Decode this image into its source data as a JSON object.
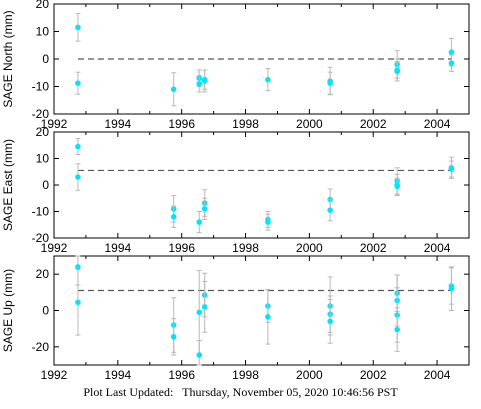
{
  "chart_data": [
    {
      "type": "scatter",
      "ylabel": "SAGE North (mm)",
      "ylim": [
        -20,
        20
      ],
      "yticks": [
        -20,
        -10,
        0,
        10,
        20
      ],
      "xlim": [
        1992,
        2005
      ],
      "xticks": [
        1992,
        1994,
        1996,
        1998,
        2000,
        2002,
        2004
      ],
      "reference_line": 0,
      "points": [
        {
          "x": 1992.75,
          "y": 11.5,
          "err": 5.0
        },
        {
          "x": 1992.75,
          "y": -8.8,
          "err": 4.0
        },
        {
          "x": 1995.75,
          "y": -11.0,
          "err": 6.0
        },
        {
          "x": 1996.55,
          "y": -7.0,
          "err": 3.0
        },
        {
          "x": 1996.55,
          "y": -9.0,
          "err": 3.0
        },
        {
          "x": 1996.72,
          "y": -8.0,
          "err": 4.0
        },
        {
          "x": 1996.72,
          "y": -7.5,
          "err": 3.5
        },
        {
          "x": 1998.7,
          "y": -7.5,
          "err": 4.0
        },
        {
          "x": 2000.65,
          "y": -8.0,
          "err": 5.0
        },
        {
          "x": 2000.65,
          "y": -8.8,
          "err": 4.0
        },
        {
          "x": 2002.75,
          "y": -2.0,
          "err": 5.0
        },
        {
          "x": 2002.75,
          "y": -4.0,
          "err": 4.0
        },
        {
          "x": 2002.75,
          "y": -4.5,
          "err": 3.5
        },
        {
          "x": 2004.45,
          "y": 2.5,
          "err": 5.0
        },
        {
          "x": 2004.45,
          "y": -1.5,
          "err": 3.0
        }
      ]
    },
    {
      "type": "scatter",
      "ylabel": "SAGE East (mm)",
      "ylim": [
        -20,
        20
      ],
      "yticks": [
        -20,
        -10,
        0,
        10,
        20
      ],
      "xlim": [
        1992,
        2005
      ],
      "xticks": [
        1992,
        1994,
        1996,
        1998,
        2000,
        2002,
        2004
      ],
      "reference_line": 5.5,
      "points": [
        {
          "x": 1992.75,
          "y": 14.5,
          "err": 3.0
        },
        {
          "x": 1992.75,
          "y": 3.0,
          "err": 5.0
        },
        {
          "x": 1995.75,
          "y": -9.0,
          "err": 5.0
        },
        {
          "x": 1995.75,
          "y": -12.0,
          "err": 4.0
        },
        {
          "x": 1996.55,
          "y": -14.0,
          "err": 4.0
        },
        {
          "x": 1996.72,
          "y": -6.8,
          "err": 5.0
        },
        {
          "x": 1996.72,
          "y": -9.0,
          "err": 4.0
        },
        {
          "x": 1998.7,
          "y": -13.0,
          "err": 3.0
        },
        {
          "x": 1998.7,
          "y": -14.0,
          "err": 3.0
        },
        {
          "x": 2000.65,
          "y": -5.5,
          "err": 4.0
        },
        {
          "x": 2000.65,
          "y": -9.5,
          "err": 4.0
        },
        {
          "x": 2002.75,
          "y": 1.5,
          "err": 5.0
        },
        {
          "x": 2002.75,
          "y": 0.0,
          "err": 4.0
        },
        {
          "x": 2002.75,
          "y": -0.5,
          "err": 3.0
        },
        {
          "x": 2004.45,
          "y": 6.5,
          "err": 4.0
        },
        {
          "x": 2004.45,
          "y": 6.0,
          "err": 3.0
        }
      ]
    },
    {
      "type": "scatter",
      "ylabel": "SAGE Up (mm)",
      "ylim": [
        -30,
        30
      ],
      "yticks": [
        -20,
        0,
        20
      ],
      "xlim": [
        1992,
        2005
      ],
      "xticks": [
        1992,
        1994,
        1996,
        1998,
        2000,
        2002,
        2004
      ],
      "reference_line": 11,
      "points": [
        {
          "x": 1992.75,
          "y": 24.0,
          "err": 10.0
        },
        {
          "x": 1992.75,
          "y": 4.5,
          "err": 18.0
        },
        {
          "x": 1995.75,
          "y": -8.0,
          "err": 15.0
        },
        {
          "x": 1995.75,
          "y": -14.5,
          "err": 10.0
        },
        {
          "x": 1996.55,
          "y": -1.0,
          "err": 23.0
        },
        {
          "x": 1996.55,
          "y": -24.5,
          "err": 8.0
        },
        {
          "x": 1996.72,
          "y": 8.5,
          "err": 12.0
        },
        {
          "x": 1996.72,
          "y": 2.0,
          "err": 14.0
        },
        {
          "x": 1998.7,
          "y": 2.5,
          "err": 9.0
        },
        {
          "x": 1998.7,
          "y": -3.5,
          "err": 15.0
        },
        {
          "x": 2000.65,
          "y": 2.5,
          "err": 16.0
        },
        {
          "x": 2000.65,
          "y": -2.0,
          "err": 10.0
        },
        {
          "x": 2000.65,
          "y": -6.0,
          "err": 12.0
        },
        {
          "x": 2002.75,
          "y": 9.5,
          "err": 10.0
        },
        {
          "x": 2002.75,
          "y": 5.5,
          "err": 14.0
        },
        {
          "x": 2002.75,
          "y": -2.5,
          "err": 15.0
        },
        {
          "x": 2002.75,
          "y": -10.5,
          "err": 12.0
        },
        {
          "x": 2004.45,
          "y": 13.5,
          "err": 10.0
        },
        {
          "x": 2004.45,
          "y": 12.0,
          "err": 12.0
        }
      ]
    }
  ],
  "footer": {
    "label": "Plot Last Updated:",
    "timestamp": "Thursday, November 05, 2020 10:46:56 PST"
  },
  "colors": {
    "marker": "#00e5ff",
    "error_bar": "#b8b8b8",
    "reference_line": "#555555",
    "axis": "#000000"
  }
}
